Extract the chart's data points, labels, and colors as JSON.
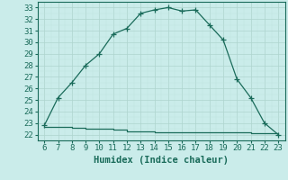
{
  "x_main": [
    6,
    7,
    8,
    9,
    10,
    11,
    12,
    13,
    14,
    15,
    16,
    17,
    18,
    19,
    20,
    21,
    22,
    23
  ],
  "y_main": [
    22.8,
    25.2,
    26.5,
    28.0,
    29.0,
    30.7,
    31.2,
    32.5,
    32.8,
    33.0,
    32.7,
    32.8,
    31.5,
    30.2,
    26.8,
    25.2,
    23.0,
    22.0
  ],
  "x_flat": [
    6,
    7,
    8,
    9,
    10,
    11,
    12,
    13,
    14,
    15,
    16,
    17,
    18,
    19,
    20,
    21,
    22,
    23
  ],
  "y_flat": [
    22.7,
    22.65,
    22.6,
    22.55,
    22.5,
    22.45,
    22.3,
    22.25,
    22.2,
    22.2,
    22.2,
    22.2,
    22.2,
    22.2,
    22.2,
    22.15,
    22.1,
    22.0
  ],
  "line_color": "#1a6b5a",
  "bg_color": "#caecea",
  "grid_major_color": "#aed4ce",
  "grid_minor_color": "#c0e4de",
  "xlabel": "Humidex (Indice chaleur)",
  "xlim": [
    5.5,
    23.5
  ],
  "ylim": [
    21.8,
    33.5
  ],
  "xticks": [
    6,
    7,
    8,
    9,
    10,
    11,
    12,
    13,
    14,
    15,
    16,
    17,
    18,
    19,
    20,
    21,
    22,
    23
  ],
  "yticks": [
    22,
    23,
    24,
    25,
    26,
    27,
    28,
    29,
    30,
    31,
    32,
    33
  ],
  "marker": "+",
  "markersize": 4,
  "linewidth": 0.9,
  "fontsize_label": 7.5,
  "fontsize_tick": 6.5
}
